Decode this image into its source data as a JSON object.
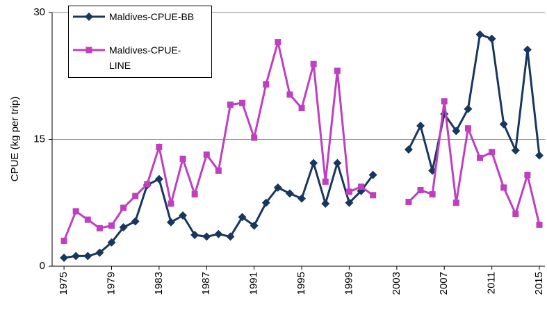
{
  "chart_data": {
    "type": "line",
    "y_label": "CPUE (kg per trip)",
    "x": [
      1975,
      1976,
      1977,
      1978,
      1979,
      1980,
      1981,
      1982,
      1983,
      1984,
      1985,
      1986,
      1987,
      1988,
      1989,
      1990,
      1991,
      1992,
      1993,
      1994,
      1995,
      1996,
      1997,
      1998,
      1999,
      2000,
      2001,
      2002,
      2003,
      2004,
      2005,
      2006,
      2007,
      2008,
      2009,
      2010,
      2011,
      2012,
      2013,
      2014,
      2015
    ],
    "series": [
      {
        "name": "Maldives-CPUE-BB",
        "color": "#17375e",
        "marker": "diamond",
        "values": [
          1.0,
          1.2,
          1.2,
          1.6,
          2.8,
          4.6,
          5.3,
          9.6,
          10.3,
          5.2,
          6.0,
          3.7,
          3.5,
          3.8,
          3.5,
          5.8,
          4.8,
          7.5,
          9.3,
          8.6,
          8.0,
          12.2,
          7.4,
          12.2,
          7.5,
          8.9,
          10.8,
          null,
          null,
          13.8,
          16.6,
          11.3,
          18.0,
          16.0,
          18.6,
          27.4,
          26.9,
          16.8,
          13.7,
          25.6,
          13.1
        ]
      },
      {
        "name": "Maldives-CPUE-LINE",
        "color": "#bf3fbf",
        "marker": "square",
        "values": [
          3.0,
          6.5,
          5.5,
          4.5,
          4.8,
          6.9,
          8.3,
          9.7,
          14.1,
          7.4,
          12.7,
          8.5,
          13.2,
          11.3,
          19.1,
          19.3,
          15.2,
          21.5,
          26.5,
          20.3,
          18.7,
          23.9,
          10.0,
          23.1,
          8.8,
          9.4,
          8.4,
          null,
          null,
          7.6,
          9.0,
          8.5,
          19.5,
          7.5,
          16.3,
          12.8,
          13.5,
          9.3,
          6.2,
          10.8,
          4.9
        ]
      }
    ],
    "xlim": [
      1974,
      2015
    ],
    "xticks": [
      1975,
      1979,
      1983,
      1987,
      1991,
      1995,
      1999,
      2003,
      2007,
      2011,
      2015
    ],
    "ylim": [
      0,
      30
    ],
    "yticks": [
      0,
      15,
      30
    ],
    "grid": true,
    "legend": "upper left"
  }
}
